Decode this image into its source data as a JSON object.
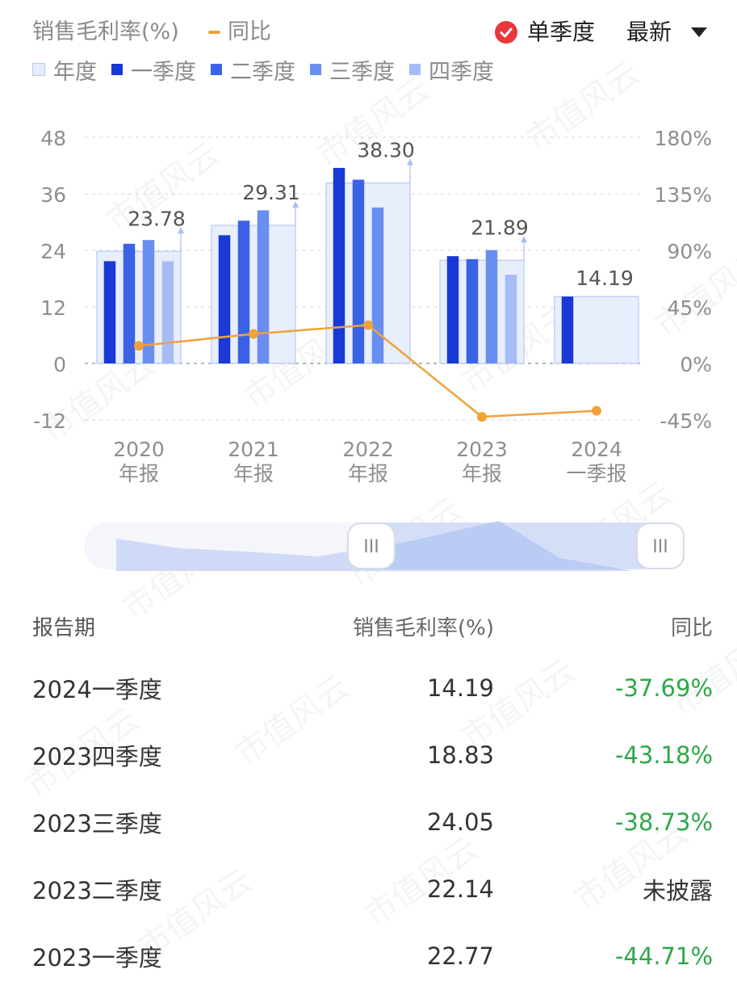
{
  "header": {
    "title": "销售毛利率(%)",
    "yoy_label": "同比",
    "single_quarter_label": "单季度",
    "latest_label": "最新"
  },
  "legend": [
    {
      "label": "年度",
      "color": "#e6ecfb",
      "border": "#b9c9f0"
    },
    {
      "label": "一季度",
      "color": "#1839d6"
    },
    {
      "label": "二季度",
      "color": "#3b62e6"
    },
    {
      "label": "三季度",
      "color": "#6a8ef0"
    },
    {
      "label": "四季度",
      "color": "#a5bcf6"
    }
  ],
  "colors": {
    "annual_fill": "#e8eefc",
    "annual_border": "#b7c8f1",
    "q1": "#1839d6",
    "q2": "#3b62e6",
    "q3": "#6a8ef0",
    "q4": "#a5bcf6",
    "yoy_line": "#f0a23a",
    "negative": "#2ea84a"
  },
  "chart_data": {
    "type": "bar",
    "categories": [
      [
        "2020",
        "年报"
      ],
      [
        "2021",
        "年报"
      ],
      [
        "2022",
        "年报"
      ],
      [
        "2023",
        "年报"
      ],
      [
        "2024",
        "一季报"
      ]
    ],
    "annual_values": [
      23.78,
      29.31,
      38.3,
      21.89,
      14.19
    ],
    "annual_labels": [
      "23.78",
      "29.31",
      "38.30",
      "21.89",
      "14.19"
    ],
    "series": [
      {
        "name": "一季度",
        "values": [
          21.7,
          27.2,
          41.5,
          22.77,
          14.19
        ]
      },
      {
        "name": "二季度",
        "values": [
          25.4,
          30.3,
          39.0,
          22.14,
          null
        ]
      },
      {
        "name": "三季度",
        "values": [
          26.2,
          32.5,
          33.1,
          24.05,
          null
        ]
      },
      {
        "name": "四季度",
        "values": [
          21.7,
          null,
          null,
          18.83,
          null
        ]
      }
    ],
    "yoy": {
      "name": "同比",
      "values": [
        14,
        23.5,
        30.5,
        -42.5,
        -37.69
      ]
    },
    "left_axis": {
      "ticks": [
        "48",
        "36",
        "24",
        "12",
        "0",
        "-12"
      ],
      "values": [
        48,
        36,
        24,
        12,
        0,
        -12
      ],
      "ylim": [
        -12,
        48
      ]
    },
    "right_axis": {
      "ticks": [
        "180%",
        "135%",
        "90%",
        "45%",
        "0%",
        "-45%"
      ],
      "values": [
        180,
        135,
        90,
        45,
        0,
        -45
      ],
      "ylim": [
        -45,
        180
      ]
    },
    "grid": true
  },
  "table": {
    "headers": [
      "报告期",
      "销售毛利率(%)",
      "同比"
    ],
    "rows": [
      {
        "period": "2024一季度",
        "value": "14.19",
        "yoy": "-37.69%",
        "neg": true
      },
      {
        "period": "2023四季度",
        "value": "18.83",
        "yoy": "-43.18%",
        "neg": true
      },
      {
        "period": "2023三季度",
        "value": "24.05",
        "yoy": "-38.73%",
        "neg": true
      },
      {
        "period": "2023二季度",
        "value": "22.14",
        "yoy": "未披露",
        "neg": false
      },
      {
        "period": "2023一季度",
        "value": "22.77",
        "yoy": "-44.71%",
        "neg": true
      }
    ]
  },
  "slider": {
    "left_handle_label": "III",
    "right_handle_label": "III",
    "handle_icon": "drag-handle-icon"
  },
  "watermark": "市值风云"
}
